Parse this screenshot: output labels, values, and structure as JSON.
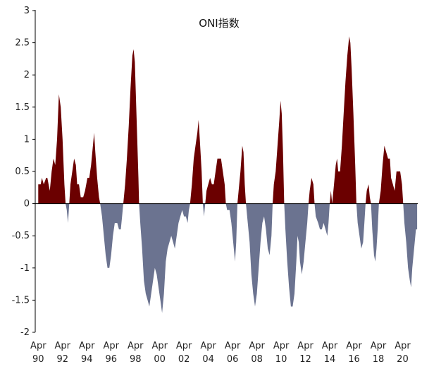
{
  "chart_data": {
    "type": "area",
    "title": "ONI指数",
    "xlabel": "",
    "ylabel": "",
    "ylim": [
      -2,
      3
    ],
    "y_ticks": [
      "3",
      "2.5",
      "2",
      "1.5",
      "1",
      "0.5",
      "0",
      "-0.5",
      "-1",
      "-1.5",
      "-2"
    ],
    "x_tick_month": "Apr",
    "x_tick_years": [
      "90",
      "92",
      "94",
      "96",
      "98",
      "00",
      "02",
      "04",
      "06",
      "08",
      "10",
      "12",
      "14",
      "16",
      "18",
      "20"
    ],
    "grid": false,
    "legend": "none",
    "colors": {
      "positive": "#6b0000",
      "negative": "#6b7390"
    },
    "series": [
      {
        "points": [
          [
            1990.25,
            0.3
          ],
          [
            1990.45,
            0.3
          ],
          [
            1990.55,
            0.4
          ],
          [
            1990.7,
            0.3
          ],
          [
            1990.9,
            0.4
          ],
          [
            1991.0,
            0.4
          ],
          [
            1991.2,
            0.2
          ],
          [
            1991.35,
            0.5
          ],
          [
            1991.5,
            0.7
          ],
          [
            1991.65,
            0.6
          ],
          [
            1991.8,
            1.0
          ],
          [
            1991.95,
            1.7
          ],
          [
            1992.1,
            1.5
          ],
          [
            1992.25,
            1.0
          ],
          [
            1992.4,
            0.3
          ],
          [
            1992.5,
            0.0
          ],
          [
            1992.6,
            -0.1
          ],
          [
            1992.7,
            -0.3
          ],
          [
            1992.8,
            0.0
          ],
          [
            1992.9,
            0.3
          ],
          [
            1993.05,
            0.5
          ],
          [
            1993.2,
            0.7
          ],
          [
            1993.35,
            0.6
          ],
          [
            1993.45,
            0.3
          ],
          [
            1993.6,
            0.3
          ],
          [
            1993.75,
            0.1
          ],
          [
            1993.95,
            0.1
          ],
          [
            1994.1,
            0.2
          ],
          [
            1994.3,
            0.4
          ],
          [
            1994.45,
            0.4
          ],
          [
            1994.6,
            0.6
          ],
          [
            1994.75,
            0.9
          ],
          [
            1994.85,
            1.1
          ],
          [
            1994.95,
            0.8
          ],
          [
            1995.1,
            0.4
          ],
          [
            1995.25,
            0.1
          ],
          [
            1995.35,
            0.0
          ],
          [
            1995.5,
            -0.2
          ],
          [
            1995.65,
            -0.5
          ],
          [
            1995.8,
            -0.8
          ],
          [
            1995.95,
            -1.0
          ],
          [
            1996.1,
            -1.0
          ],
          [
            1996.25,
            -0.8
          ],
          [
            1996.4,
            -0.5
          ],
          [
            1996.55,
            -0.3
          ],
          [
            1996.75,
            -0.3
          ],
          [
            1996.9,
            -0.4
          ],
          [
            1997.05,
            -0.4
          ],
          [
            1997.15,
            -0.2
          ],
          [
            1997.25,
            0.0
          ],
          [
            1997.4,
            0.3
          ],
          [
            1997.55,
            0.7
          ],
          [
            1997.7,
            1.2
          ],
          [
            1997.85,
            1.8
          ],
          [
            1998.0,
            2.3
          ],
          [
            1998.1,
            2.4
          ],
          [
            1998.2,
            2.2
          ],
          [
            1998.3,
            1.6
          ],
          [
            1998.4,
            1.0
          ],
          [
            1998.5,
            0.4
          ],
          [
            1998.55,
            0.0
          ],
          [
            1998.65,
            -0.3
          ],
          [
            1998.8,
            -0.7
          ],
          [
            1998.95,
            -1.2
          ],
          [
            1999.1,
            -1.4
          ],
          [
            1999.25,
            -1.5
          ],
          [
            1999.4,
            -1.6
          ],
          [
            1999.55,
            -1.4
          ],
          [
            1999.7,
            -1.2
          ],
          [
            1999.85,
            -1.0
          ],
          [
            2000.0,
            -1.1
          ],
          [
            2000.15,
            -1.3
          ],
          [
            2000.3,
            -1.5
          ],
          [
            2000.45,
            -1.7
          ],
          [
            2000.6,
            -1.4
          ],
          [
            2000.75,
            -0.9
          ],
          [
            2000.9,
            -0.7
          ],
          [
            2001.05,
            -0.6
          ],
          [
            2001.2,
            -0.5
          ],
          [
            2001.35,
            -0.6
          ],
          [
            2001.5,
            -0.7
          ],
          [
            2001.65,
            -0.5
          ],
          [
            2001.8,
            -0.3
          ],
          [
            2001.95,
            -0.2
          ],
          [
            2002.1,
            -0.1
          ],
          [
            2002.25,
            -0.2
          ],
          [
            2002.4,
            -0.2
          ],
          [
            2002.55,
            -0.3
          ],
          [
            2002.65,
            -0.1
          ],
          [
            2002.75,
            0.0
          ],
          [
            2002.9,
            0.3
          ],
          [
            2003.05,
            0.7
          ],
          [
            2003.2,
            0.9
          ],
          [
            2003.35,
            1.1
          ],
          [
            2003.45,
            1.3
          ],
          [
            2003.55,
            1.0
          ],
          [
            2003.7,
            0.5
          ],
          [
            2003.8,
            0.0
          ],
          [
            2003.9,
            -0.2
          ],
          [
            2004.0,
            0.0
          ],
          [
            2004.1,
            0.2
          ],
          [
            2004.25,
            0.3
          ],
          [
            2004.4,
            0.4
          ],
          [
            2004.55,
            0.3
          ],
          [
            2004.7,
            0.3
          ],
          [
            2004.85,
            0.5
          ],
          [
            2005.0,
            0.7
          ],
          [
            2005.15,
            0.7
          ],
          [
            2005.3,
            0.7
          ],
          [
            2005.45,
            0.5
          ],
          [
            2005.6,
            0.3
          ],
          [
            2005.7,
            0.0
          ],
          [
            2005.8,
            -0.1
          ],
          [
            2006.0,
            -0.1
          ],
          [
            2006.15,
            -0.3
          ],
          [
            2006.3,
            -0.6
          ],
          [
            2006.45,
            -0.9
          ],
          [
            2006.55,
            -0.6
          ],
          [
            2006.65,
            0.0
          ],
          [
            2006.75,
            0.2
          ],
          [
            2006.9,
            0.5
          ],
          [
            2007.05,
            0.9
          ],
          [
            2007.15,
            0.8
          ],
          [
            2007.25,
            0.3
          ],
          [
            2007.35,
            0.0
          ],
          [
            2007.5,
            -0.3
          ],
          [
            2007.65,
            -0.6
          ],
          [
            2007.8,
            -1.1
          ],
          [
            2007.95,
            -1.4
          ],
          [
            2008.1,
            -1.6
          ],
          [
            2008.25,
            -1.4
          ],
          [
            2008.4,
            -1.0
          ],
          [
            2008.55,
            -0.6
          ],
          [
            2008.7,
            -0.3
          ],
          [
            2008.85,
            -0.2
          ],
          [
            2009.0,
            -0.4
          ],
          [
            2009.15,
            -0.7
          ],
          [
            2009.3,
            -0.8
          ],
          [
            2009.45,
            -0.5
          ],
          [
            2009.55,
            0.0
          ],
          [
            2009.65,
            0.3
          ],
          [
            2009.8,
            0.5
          ],
          [
            2009.95,
            0.9
          ],
          [
            2010.1,
            1.3
          ],
          [
            2010.2,
            1.6
          ],
          [
            2010.3,
            1.4
          ],
          [
            2010.4,
            0.8
          ],
          [
            2010.5,
            0.0
          ],
          [
            2010.6,
            -0.4
          ],
          [
            2010.75,
            -0.9
          ],
          [
            2010.9,
            -1.3
          ],
          [
            2011.05,
            -1.6
          ],
          [
            2011.2,
            -1.6
          ],
          [
            2011.35,
            -1.4
          ],
          [
            2011.5,
            -0.9
          ],
          [
            2011.6,
            -0.5
          ],
          [
            2011.7,
            -0.6
          ],
          [
            2011.8,
            -0.9
          ],
          [
            2011.95,
            -1.1
          ],
          [
            2012.1,
            -0.9
          ],
          [
            2012.25,
            -0.6
          ],
          [
            2012.4,
            -0.3
          ],
          [
            2012.5,
            0.0
          ],
          [
            2012.6,
            0.2
          ],
          [
            2012.75,
            0.4
          ],
          [
            2012.9,
            0.3
          ],
          [
            2013.0,
            0.0
          ],
          [
            2013.1,
            -0.2
          ],
          [
            2013.3,
            -0.3
          ],
          [
            2013.45,
            -0.4
          ],
          [
            2013.6,
            -0.4
          ],
          [
            2013.75,
            -0.3
          ],
          [
            2013.9,
            -0.4
          ],
          [
            2014.05,
            -0.5
          ],
          [
            2014.15,
            -0.3
          ],
          [
            2014.25,
            0.0
          ],
          [
            2014.35,
            0.2
          ],
          [
            2014.45,
            0.0
          ],
          [
            2014.6,
            0.3
          ],
          [
            2014.75,
            0.6
          ],
          [
            2014.85,
            0.7
          ],
          [
            2014.95,
            0.5
          ],
          [
            2015.1,
            0.5
          ],
          [
            2015.25,
            0.9
          ],
          [
            2015.4,
            1.4
          ],
          [
            2015.55,
            1.9
          ],
          [
            2015.7,
            2.3
          ],
          [
            2015.85,
            2.6
          ],
          [
            2015.95,
            2.5
          ],
          [
            2016.05,
            2.1
          ],
          [
            2016.2,
            1.4
          ],
          [
            2016.35,
            0.6
          ],
          [
            2016.45,
            0.0
          ],
          [
            2016.55,
            -0.3
          ],
          [
            2016.7,
            -0.5
          ],
          [
            2016.85,
            -0.7
          ],
          [
            2017.0,
            -0.6
          ],
          [
            2017.1,
            -0.3
          ],
          [
            2017.2,
            0.0
          ],
          [
            2017.3,
            0.2
          ],
          [
            2017.45,
            0.3
          ],
          [
            2017.55,
            0.1
          ],
          [
            2017.65,
            0.0
          ],
          [
            2017.75,
            -0.4
          ],
          [
            2017.9,
            -0.8
          ],
          [
            2018.0,
            -0.9
          ],
          [
            2018.1,
            -0.7
          ],
          [
            2018.2,
            -0.4
          ],
          [
            2018.3,
            0.0
          ],
          [
            2018.45,
            0.2
          ],
          [
            2018.6,
            0.6
          ],
          [
            2018.75,
            0.9
          ],
          [
            2018.9,
            0.8
          ],
          [
            2019.05,
            0.7
          ],
          [
            2019.2,
            0.7
          ],
          [
            2019.3,
            0.4
          ],
          [
            2019.45,
            0.3
          ],
          [
            2019.6,
            0.2
          ],
          [
            2019.75,
            0.5
          ],
          [
            2019.9,
            0.5
          ],
          [
            2020.05,
            0.5
          ],
          [
            2020.2,
            0.3
          ],
          [
            2020.3,
            0.0
          ],
          [
            2020.4,
            -0.3
          ],
          [
            2020.55,
            -0.6
          ],
          [
            2020.7,
            -1.0
          ],
          [
            2020.85,
            -1.2
          ],
          [
            2020.95,
            -1.3
          ],
          [
            2021.05,
            -1.0
          ],
          [
            2021.2,
            -0.7
          ],
          [
            2021.35,
            -0.4
          ],
          [
            2021.45,
            -0.4
          ]
        ]
      }
    ]
  }
}
